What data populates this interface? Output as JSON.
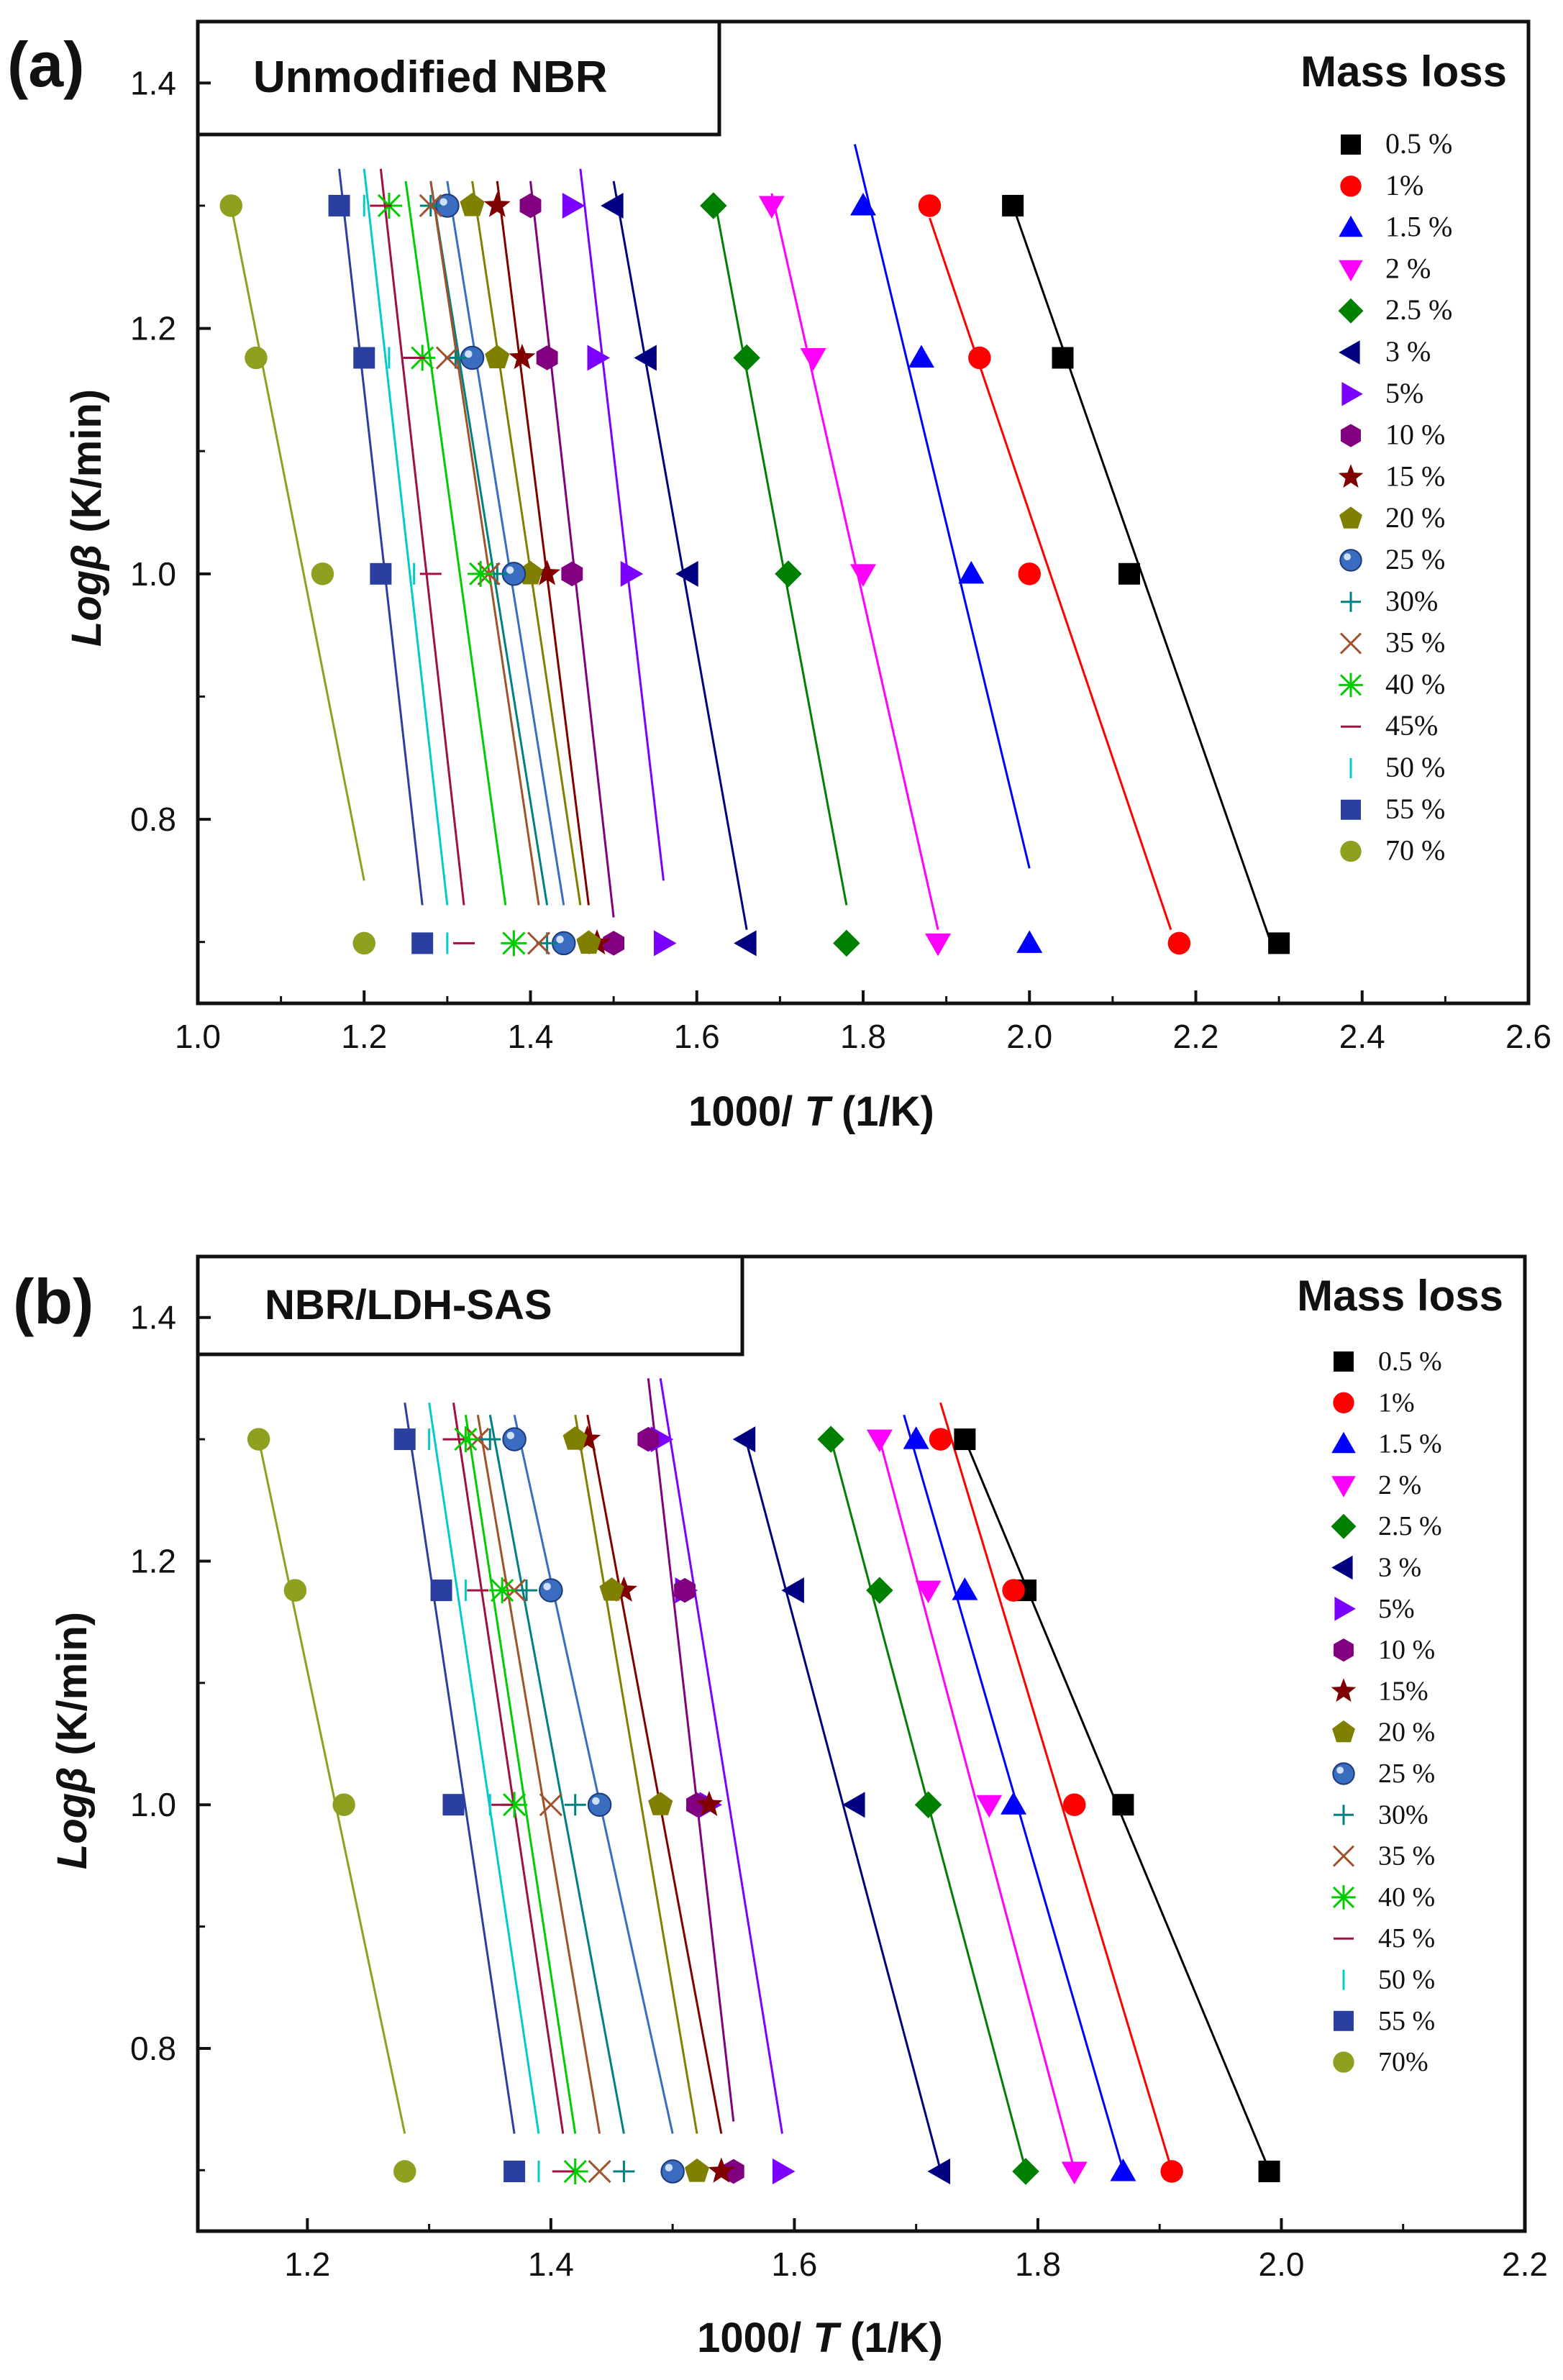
{
  "chart_data": [
    {
      "type": "scatter",
      "panel_label": "(a)",
      "title": "Unmodified NBR",
      "xlabel_main": "1000/ ",
      "xlabel_var": "T",
      "xlabel_unit": " (1/K)",
      "ylabel_var": "Logβ",
      "ylabel_unit": " (K/min)",
      "xlim": [
        1.0,
        2.6
      ],
      "ylim": [
        0.65,
        1.45
      ],
      "xticks": [
        "1.0",
        "1.2",
        "1.4",
        "1.6",
        "1.8",
        "2.0",
        "2.2",
        "2.4",
        "2.6"
      ],
      "yticks": [
        "0.8",
        "1.0",
        "1.2",
        "1.4"
      ],
      "legend_title": "Mass loss",
      "y_levels": [
        1.3,
        1.176,
        1.0,
        0.699
      ],
      "series": [
        {
          "name": "0.5 %",
          "marker": "square",
          "color": "#000000",
          "x": [
            1.98,
            2.04,
            2.12,
            2.3
          ],
          "fit": {
            "x0": 1.98,
            "y0": 1.3,
            "x1": 2.29,
            "y1": 0.7
          }
        },
        {
          "name": "1%",
          "marker": "circle",
          "color": "#ff0000",
          "x": [
            1.88,
            1.94,
            2.0,
            2.18
          ],
          "fit": {
            "x0": 1.88,
            "y0": 1.29,
            "x1": 2.17,
            "y1": 0.71
          }
        },
        {
          "name": "1.5 %",
          "marker": "triangle-up",
          "color": "#0000ff",
          "x": [
            1.8,
            1.87,
            1.93,
            2.0
          ],
          "fit": {
            "x0": 1.79,
            "y0": 1.35,
            "x1": 2.0,
            "y1": 0.76
          }
        },
        {
          "name": "2 %",
          "marker": "triangle-down",
          "color": "#ff00ff",
          "x": [
            1.69,
            1.74,
            1.8,
            1.89
          ],
          "fit": {
            "x0": 1.69,
            "y0": 1.31,
            "x1": 1.89,
            "y1": 0.71
          }
        },
        {
          "name": "2.5 %",
          "marker": "diamond",
          "color": "#008000",
          "x": [
            1.62,
            1.66,
            1.71,
            1.78
          ],
          "fit": {
            "x0": 1.62,
            "y0": 1.31,
            "x1": 1.78,
            "y1": 0.73
          }
        },
        {
          "name": "3 %",
          "marker": "triangle-left",
          "color": "#000080",
          "x": [
            1.5,
            1.54,
            1.59,
            1.66
          ],
          "fit": {
            "x0": 1.5,
            "y0": 1.32,
            "x1": 1.66,
            "y1": 0.71
          }
        },
        {
          "name": "5%",
          "marker": "triangle-right",
          "color": "#7b00ff",
          "x": [
            1.45,
            1.48,
            1.52,
            1.56
          ],
          "fit": {
            "x0": 1.46,
            "y0": 1.33,
            "x1": 1.56,
            "y1": 0.75
          }
        },
        {
          "name": "10 %",
          "marker": "hexagon",
          "color": "#800080",
          "x": [
            1.4,
            1.42,
            1.45,
            1.5
          ],
          "fit": {
            "x0": 1.4,
            "y0": 1.32,
            "x1": 1.5,
            "y1": 0.72
          }
        },
        {
          "name": "15 %",
          "marker": "star",
          "color": "#800000",
          "x": [
            1.36,
            1.39,
            1.42,
            1.48
          ],
          "fit": {
            "x0": 1.36,
            "y0": 1.32,
            "x1": 1.47,
            "y1": 0.73
          }
        },
        {
          "name": "20 %",
          "marker": "pentagon",
          "color": "#808000",
          "x": [
            1.33,
            1.36,
            1.4,
            1.47
          ],
          "fit": {
            "x0": 1.33,
            "y0": 1.32,
            "x1": 1.46,
            "y1": 0.73
          }
        },
        {
          "name": "25 %",
          "marker": "sphere",
          "color": "#3a6cc0",
          "x": [
            1.3,
            1.33,
            1.38,
            1.44
          ],
          "fit": {
            "x0": 1.3,
            "y0": 1.32,
            "x1": 1.44,
            "y1": 0.73
          }
        },
        {
          "name": "30%",
          "marker": "plus",
          "color": "#008080",
          "x": [
            1.28,
            1.31,
            1.36,
            1.42
          ],
          "fit": {
            "x0": 1.28,
            "y0": 1.32,
            "x1": 1.42,
            "y1": 0.73
          }
        },
        {
          "name": "35 %",
          "marker": "cross",
          "color": "#a0522d",
          "x": [
            1.28,
            1.3,
            1.35,
            1.41
          ],
          "fit": {
            "x0": 1.28,
            "y0": 1.32,
            "x1": 1.41,
            "y1": 0.73
          }
        },
        {
          "name": "40 %",
          "marker": "asterisk",
          "color": "#00cc00",
          "x": [
            1.23,
            1.27,
            1.34,
            1.38
          ],
          "fit": {
            "x0": 1.25,
            "y0": 1.32,
            "x1": 1.37,
            "y1": 0.73
          }
        },
        {
          "name": "45%",
          "marker": "hline",
          "color": "#a01040",
          "x": [
            1.22,
            1.26,
            1.28,
            1.32
          ],
          "fit": {
            "x0": 1.22,
            "y0": 1.33,
            "x1": 1.32,
            "y1": 0.73
          }
        },
        {
          "name": "50 %",
          "marker": "vline",
          "color": "#00cccc",
          "x": [
            1.2,
            1.23,
            1.26,
            1.3
          ],
          "fit": {
            "x0": 1.2,
            "y0": 1.33,
            "x1": 1.3,
            "y1": 0.73
          }
        },
        {
          "name": "55 %",
          "marker": "square",
          "color": "#2b3fa0",
          "x": [
            1.17,
            1.2,
            1.22,
            1.27
          ],
          "fit": {
            "x0": 1.17,
            "y0": 1.33,
            "x1": 1.27,
            "y1": 0.73
          }
        },
        {
          "name": "70 %",
          "marker": "circle",
          "color": "#8fa020",
          "x": [
            1.04,
            1.07,
            1.15,
            1.2
          ],
          "fit": {
            "x0": 1.04,
            "y0": 1.3,
            "x1": 1.2,
            "y1": 0.75
          }
        }
      ]
    },
    {
      "type": "scatter",
      "panel_label": "(b)",
      "title": "NBR/LDH-SAS",
      "xlabel_main": "1000/ ",
      "xlabel_var": "T",
      "xlabel_unit": " (1/K)",
      "ylabel_var": "Logβ",
      "ylabel_unit": " (K/min)",
      "xlim": [
        1.11,
        2.2
      ],
      "ylim": [
        0.65,
        1.45
      ],
      "xticks": [
        "1.2",
        "1.4",
        "1.6",
        "1.8",
        "2.0",
        "2.2"
      ],
      "yticks": [
        "0.8",
        "1.0",
        "1.2",
        "1.4"
      ],
      "legend_title": "Mass loss",
      "y_levels": [
        1.3,
        1.176,
        1.0,
        0.699
      ],
      "series": [
        {
          "name": "0.5 %",
          "marker": "square",
          "color": "#000000",
          "x": [
            1.74,
            1.79,
            1.87,
            1.99
          ],
          "fit": {
            "x0": 1.74,
            "y0": 1.3,
            "x1": 1.99,
            "y1": 0.7
          }
        },
        {
          "name": "1%",
          "marker": "circle",
          "color": "#ff0000",
          "x": [
            1.72,
            1.78,
            1.83,
            1.91
          ],
          "fit": {
            "x0": 1.72,
            "y0": 1.33,
            "x1": 1.91,
            "y1": 0.7
          }
        },
        {
          "name": "1.5 %",
          "marker": "triangle-up",
          "color": "#0000ff",
          "x": [
            1.7,
            1.74,
            1.78,
            1.87
          ],
          "fit": {
            "x0": 1.69,
            "y0": 1.32,
            "x1": 1.87,
            "y1": 0.7
          }
        },
        {
          "name": "2 %",
          "marker": "triangle-down",
          "color": "#ff00ff",
          "x": [
            1.67,
            1.71,
            1.76,
            1.83
          ],
          "fit": {
            "x0": 1.67,
            "y0": 1.3,
            "x1": 1.83,
            "y1": 0.7
          }
        },
        {
          "name": "2.5 %",
          "marker": "diamond",
          "color": "#008000",
          "x": [
            1.63,
            1.67,
            1.71,
            1.79
          ],
          "fit": {
            "x0": 1.63,
            "y0": 1.3,
            "x1": 1.79,
            "y1": 0.7
          }
        },
        {
          "name": "3 %",
          "marker": "triangle-left",
          "color": "#000080",
          "x": [
            1.56,
            1.6,
            1.65,
            1.72
          ],
          "fit": {
            "x0": 1.56,
            "y0": 1.3,
            "x1": 1.72,
            "y1": 0.7
          }
        },
        {
          "name": "5%",
          "marker": "triangle-right",
          "color": "#7b00ff",
          "x": [
            1.49,
            1.51,
            1.53,
            1.59
          ],
          "fit": {
            "x0": 1.49,
            "y0": 1.35,
            "x1": 1.59,
            "y1": 0.73
          }
        },
        {
          "name": "10 %",
          "marker": "hexagon",
          "color": "#800080",
          "x": [
            1.48,
            1.51,
            1.52,
            1.55
          ],
          "fit": {
            "x0": 1.48,
            "y0": 1.35,
            "x1": 1.55,
            "y1": 0.74
          }
        },
        {
          "name": "15%",
          "marker": "star",
          "color": "#800000",
          "x": [
            1.43,
            1.46,
            1.53,
            1.54
          ],
          "fit": {
            "x0": 1.43,
            "y0": 1.32,
            "x1": 1.54,
            "y1": 0.73
          }
        },
        {
          "name": "20 %",
          "marker": "pentagon",
          "color": "#808000",
          "x": [
            1.42,
            1.45,
            1.49,
            1.52
          ],
          "fit": {
            "x0": 1.42,
            "y0": 1.32,
            "x1": 1.52,
            "y1": 0.73
          }
        },
        {
          "name": "25 %",
          "marker": "sphere",
          "color": "#3a6cc0",
          "x": [
            1.37,
            1.4,
            1.44,
            1.5
          ],
          "fit": {
            "x0": 1.37,
            "y0": 1.32,
            "x1": 1.5,
            "y1": 0.73
          }
        },
        {
          "name": "30%",
          "marker": "plus",
          "color": "#008080",
          "x": [
            1.35,
            1.38,
            1.42,
            1.46
          ],
          "fit": {
            "x0": 1.35,
            "y0": 1.32,
            "x1": 1.46,
            "y1": 0.73
          }
        },
        {
          "name": "35 %",
          "marker": "cross",
          "color": "#a0522d",
          "x": [
            1.34,
            1.37,
            1.4,
            1.44
          ],
          "fit": {
            "x0": 1.34,
            "y0": 1.32,
            "x1": 1.44,
            "y1": 0.73
          }
        },
        {
          "name": "40 %",
          "marker": "asterisk",
          "color": "#00cc00",
          "x": [
            1.33,
            1.36,
            1.37,
            1.42
          ],
          "fit": {
            "x0": 1.33,
            "y0": 1.32,
            "x1": 1.42,
            "y1": 0.73
          }
        },
        {
          "name": "45 %",
          "marker": "hline",
          "color": "#a01040",
          "x": [
            1.32,
            1.34,
            1.36,
            1.41
          ],
          "fit": {
            "x0": 1.32,
            "y0": 1.33,
            "x1": 1.41,
            "y1": 0.73
          }
        },
        {
          "name": "50 %",
          "marker": "vline",
          "color": "#00cccc",
          "x": [
            1.3,
            1.33,
            1.35,
            1.39
          ],
          "fit": {
            "x0": 1.3,
            "y0": 1.33,
            "x1": 1.39,
            "y1": 0.73
          }
        },
        {
          "name": "55 %",
          "marker": "square",
          "color": "#2b3fa0",
          "x": [
            1.28,
            1.31,
            1.32,
            1.37
          ],
          "fit": {
            "x0": 1.28,
            "y0": 1.33,
            "x1": 1.37,
            "y1": 0.73
          }
        },
        {
          "name": "70%",
          "marker": "circle",
          "color": "#8fa020",
          "x": [
            1.16,
            1.19,
            1.23,
            1.28
          ],
          "fit": {
            "x0": 1.16,
            "y0": 1.3,
            "x1": 1.28,
            "y1": 0.73
          }
        }
      ]
    }
  ]
}
